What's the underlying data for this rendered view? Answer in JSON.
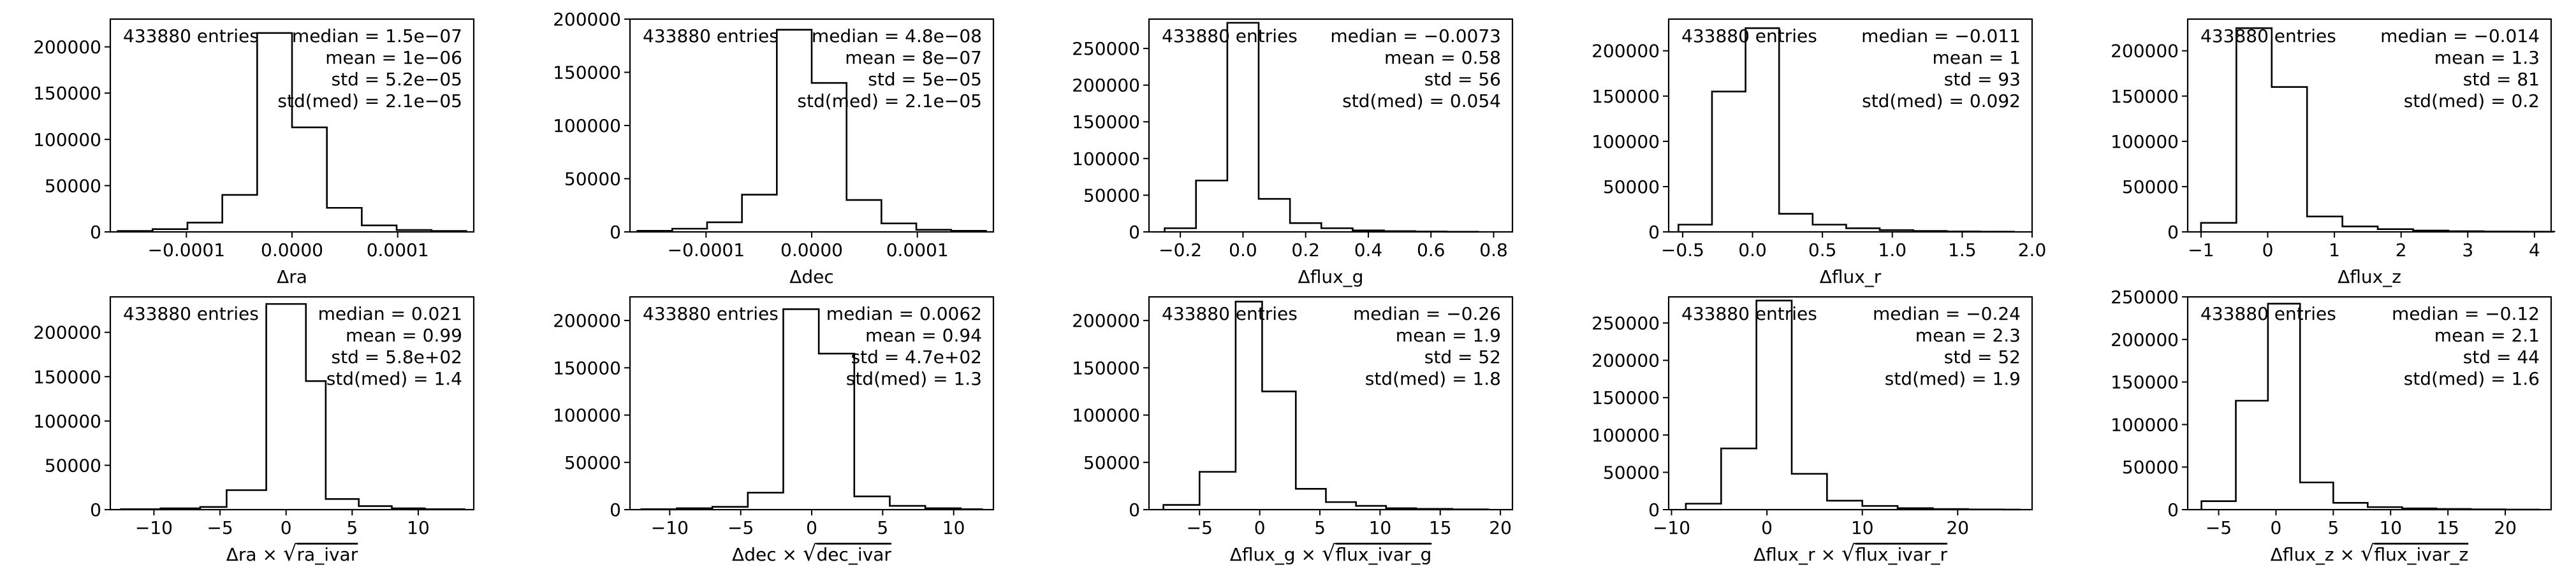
{
  "chart_data": [
    {
      "type": "bar",
      "xlabel": "Δra",
      "entries_label": "433880 entries",
      "stats": [
        "median = 1.5e−07",
        "mean = 1e−06",
        "std = 5.2e−05",
        "std(med) = 2.1e−05"
      ],
      "xlim": [
        -0.000172,
        0.000172
      ],
      "ylim": [
        0,
        230000
      ],
      "xticks": [
        -0.0001,
        0.0,
        0.0001
      ],
      "xtick_labels": [
        "−0.0001",
        "0.0000",
        "0.0001"
      ],
      "yticks": [
        0,
        50000,
        100000,
        150000,
        200000
      ],
      "ytick_labels": [
        "0",
        "50000",
        "100000",
        "150000",
        "200000"
      ],
      "bin_edges": [
        -0.000165,
        -0.000132,
        -9.9e-05,
        -6.6e-05,
        -3.3e-05,
        0.0,
        3.3e-05,
        6.6e-05,
        9.9e-05,
        0.000132,
        0.000165
      ],
      "counts": [
        1000,
        3000,
        10000,
        40000,
        215000,
        113000,
        26000,
        7000,
        2000,
        1000
      ]
    },
    {
      "type": "bar",
      "xlabel": "Δdec",
      "entries_label": "433880 entries",
      "stats": [
        "median = 4.8e−08",
        "mean = 8e−07",
        "std = 5e−05",
        "std(med) = 2.1e−05"
      ],
      "xlim": [
        -0.000172,
        0.000172
      ],
      "ylim": [
        0,
        200000
      ],
      "xticks": [
        -0.0001,
        0.0,
        0.0001
      ],
      "xtick_labels": [
        "−0.0001",
        "0.0000",
        "0.0001"
      ],
      "yticks": [
        0,
        50000,
        100000,
        150000,
        200000
      ],
      "ytick_labels": [
        "0",
        "50000",
        "100000",
        "150000",
        "200000"
      ],
      "bin_edges": [
        -0.000165,
        -0.000132,
        -9.9e-05,
        -6.6e-05,
        -3.3e-05,
        0.0,
        3.3e-05,
        6.6e-05,
        9.9e-05,
        0.000132,
        0.000165
      ],
      "counts": [
        1000,
        3000,
        9000,
        35000,
        190000,
        140000,
        30000,
        8000,
        2000,
        1000
      ]
    },
    {
      "type": "bar",
      "xlabel": "Δflux_g",
      "entries_label": "433880 entries",
      "stats": [
        "median = −0.0073",
        "mean = 0.58",
        "std = 56",
        "std(med) = 0.054"
      ],
      "xlim": [
        -0.3,
        0.86
      ],
      "ylim": [
        0,
        290000
      ],
      "xticks": [
        -0.2,
        0.0,
        0.2,
        0.4,
        0.6,
        0.8
      ],
      "xtick_labels": [
        "−0.2",
        "0.0",
        "0.2",
        "0.4",
        "0.6",
        "0.8"
      ],
      "yticks": [
        0,
        50000,
        100000,
        150000,
        200000,
        250000
      ],
      "ytick_labels": [
        "0",
        "50000",
        "100000",
        "150000",
        "200000",
        "250000"
      ],
      "bin_edges": [
        -0.25,
        -0.15,
        -0.05,
        0.05,
        0.15,
        0.25,
        0.35,
        0.45,
        0.55,
        0.65,
        0.75
      ],
      "counts": [
        5000,
        70000,
        285000,
        45000,
        12000,
        5000,
        2000,
        1000,
        500,
        200
      ]
    },
    {
      "type": "bar",
      "xlabel": "Δflux_r",
      "entries_label": "433880 entries",
      "stats": [
        "median = −0.011",
        "mean = 1",
        "std = 93",
        "std(med) = 0.092"
      ],
      "xlim": [
        -0.6,
        2.0
      ],
      "ylim": [
        0,
        235000
      ],
      "xticks": [
        -0.5,
        0.0,
        0.5,
        1.0,
        1.5,
        2.0
      ],
      "xtick_labels": [
        "−0.5",
        "0.0",
        "0.5",
        "1.0",
        "1.5",
        "2.0"
      ],
      "yticks": [
        0,
        50000,
        100000,
        150000,
        200000
      ],
      "ytick_labels": [
        "0",
        "50000",
        "100000",
        "150000",
        "200000"
      ],
      "bin_edges": [
        -0.53,
        -0.29,
        -0.05,
        0.19,
        0.43,
        0.67,
        0.91,
        1.15,
        1.39,
        1.63,
        1.87
      ],
      "counts": [
        8000,
        155000,
        225000,
        20000,
        8000,
        4000,
        2000,
        1000,
        500,
        200
      ]
    },
    {
      "type": "bar",
      "xlabel": "Δflux_z",
      "entries_label": "433880 entries",
      "stats": [
        "median = −0.014",
        "mean = 1.3",
        "std = 81",
        "std(med) = 0.2"
      ],
      "xlim": [
        -1.2,
        4.25
      ],
      "ylim": [
        0,
        235000
      ],
      "xticks": [
        -1,
        0,
        1,
        2,
        3,
        4
      ],
      "xtick_labels": [
        "−1",
        "0",
        "1",
        "2",
        "3",
        "4"
      ],
      "yticks": [
        0,
        50000,
        100000,
        150000,
        200000
      ],
      "ytick_labels": [
        "0",
        "50000",
        "100000",
        "150000",
        "200000"
      ],
      "bin_edges": [
        -1.0,
        -0.47,
        0.06,
        0.59,
        1.12,
        1.65,
        2.18,
        2.71,
        3.24,
        3.77,
        4.3
      ],
      "counts": [
        10000,
        225000,
        160000,
        17000,
        6000,
        3000,
        1500,
        800,
        400,
        200
      ]
    },
    {
      "type": "bar",
      "xlabel": "Δra × √ra_ivar",
      "xlabel_parts": [
        "Δra × ",
        "ra_ivar"
      ],
      "entries_label": "433880 entries",
      "stats": [
        "median = 0.021",
        "mean = 0.99",
        "std = 5.8e+02",
        "std(med) = 1.4"
      ],
      "xlim": [
        -13.3,
        14.2
      ],
      "ylim": [
        0,
        240000
      ],
      "xticks": [
        -10,
        -5,
        0,
        5,
        10
      ],
      "xtick_labels": [
        "−10",
        "−5",
        "0",
        "5",
        "10"
      ],
      "yticks": [
        0,
        50000,
        100000,
        150000,
        200000
      ],
      "ytick_labels": [
        "0",
        "50000",
        "100000",
        "150000",
        "200000"
      ],
      "bin_edges": [
        -12.5,
        -9.5,
        -6.5,
        -4.5,
        -1.5,
        1.5,
        3.0,
        5.5,
        8.0,
        10.5,
        13.5
      ],
      "counts": [
        500,
        1500,
        3000,
        22000,
        232000,
        145000,
        12000,
        4000,
        1500,
        500
      ]
    },
    {
      "type": "bar",
      "xlabel": "Δdec × √dec_ivar",
      "xlabel_parts": [
        "Δdec × ",
        "dec_ivar"
      ],
      "entries_label": "433880 entries",
      "stats": [
        "median = 0.0062",
        "mean = 0.94",
        "std = 4.7e+02",
        "std(med) = 1.3"
      ],
      "xlim": [
        -12.8,
        12.8
      ],
      "ylim": [
        0,
        225000
      ],
      "xticks": [
        -10,
        -5,
        0,
        5,
        10
      ],
      "xtick_labels": [
        "−10",
        "−5",
        "0",
        "5",
        "10"
      ],
      "yticks": [
        0,
        50000,
        100000,
        150000,
        200000
      ],
      "ytick_labels": [
        "0",
        "50000",
        "100000",
        "150000",
        "200000"
      ],
      "bin_edges": [
        -12.0,
        -9.5,
        -7.0,
        -4.5,
        -2.0,
        0.5,
        3.0,
        5.5,
        8.0,
        10.5,
        12.0
      ],
      "counts": [
        500,
        1500,
        3000,
        18000,
        212000,
        165000,
        14000,
        4000,
        1500,
        500
      ]
    },
    {
      "type": "bar",
      "xlabel": "Δflux_g × √flux_ivar_g",
      "xlabel_parts": [
        "Δflux_g × ",
        "flux_ivar_g"
      ],
      "entries_label": "433880 entries",
      "stats": [
        "median = −0.26",
        "mean = 1.9",
        "std = 52",
        "std(med) = 1.8"
      ],
      "xlim": [
        -9.2,
        21.0
      ],
      "ylim": [
        0,
        225000
      ],
      "xticks": [
        -5,
        0,
        5,
        10,
        15,
        20
      ],
      "xtick_labels": [
        "−5",
        "0",
        "5",
        "10",
        "15",
        "20"
      ],
      "yticks": [
        0,
        50000,
        100000,
        150000,
        200000
      ],
      "ytick_labels": [
        "0",
        "50000",
        "100000",
        "150000",
        "200000"
      ],
      "bin_edges": [
        -8.0,
        -5.0,
        -2.0,
        0.2,
        3.0,
        5.5,
        8.0,
        10.5,
        13.0,
        16.0,
        19.0
      ],
      "counts": [
        5000,
        40000,
        220000,
        125000,
        22000,
        8000,
        4000,
        1500,
        800,
        300
      ]
    },
    {
      "type": "bar",
      "xlabel": "Δflux_r × √flux_ivar_r",
      "xlabel_parts": [
        "Δflux_r × ",
        "flux_ivar_r"
      ],
      "entries_label": "433880 entries",
      "stats": [
        "median = −0.24",
        "mean = 2.3",
        "std = 52",
        "std(med) = 1.9"
      ],
      "xlim": [
        -10.3,
        27.8
      ],
      "ylim": [
        0,
        285000
      ],
      "xticks": [
        -10,
        0,
        10,
        20
      ],
      "xtick_labels": [
        "−10",
        "0",
        "10",
        "20"
      ],
      "yticks": [
        0,
        50000,
        100000,
        150000,
        200000,
        250000
      ],
      "ytick_labels": [
        "0",
        "50000",
        "100000",
        "150000",
        "200000",
        "250000"
      ],
      "bin_edges": [
        -8.5,
        -4.8,
        -1.1,
        2.6,
        6.3,
        10.0,
        13.7,
        17.4,
        21.1,
        24.8,
        26.5
      ],
      "counts": [
        8000,
        82000,
        280000,
        48000,
        12000,
        5000,
        2000,
        800,
        300,
        100
      ]
    },
    {
      "type": "bar",
      "xlabel": "Δflux_z × √flux_ivar_z",
      "xlabel_parts": [
        "Δflux_z × ",
        "flux_ivar_z"
      ],
      "entries_label": "433880 entries",
      "stats": [
        "median = −0.12",
        "mean = 2.1",
        "std = 44",
        "std(med) = 1.6"
      ],
      "xlim": [
        -7.7,
        24.0
      ],
      "ylim": [
        0,
        250000
      ],
      "xticks": [
        -5,
        0,
        5,
        10,
        15,
        20
      ],
      "xtick_labels": [
        "−5",
        "0",
        "5",
        "10",
        "15",
        "20"
      ],
      "yticks": [
        0,
        50000,
        100000,
        150000,
        200000,
        250000
      ],
      "ytick_labels": [
        "0",
        "50000",
        "100000",
        "150000",
        "200000",
        "250000"
      ],
      "bin_edges": [
        -6.5,
        -3.5,
        -0.7,
        2.1,
        5.0,
        8.0,
        11.0,
        14.0,
        17.0,
        20.0,
        23.0
      ],
      "counts": [
        10000,
        128000,
        242000,
        32000,
        8000,
        3000,
        1500,
        800,
        300,
        100
      ]
    }
  ]
}
